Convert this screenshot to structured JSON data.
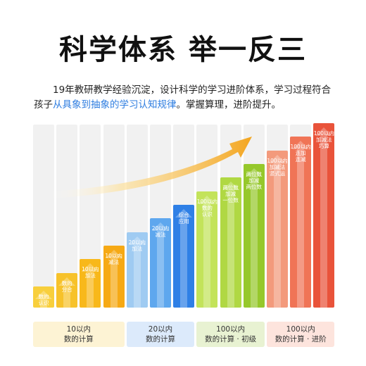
{
  "title": "科学体系 举一反三",
  "description": {
    "part1": "19年教研教学经验沉淀，设计科学的学习进阶体系，学习过程符合孩子",
    "highlight": "从具象到抽象的学习认知规律",
    "part2": "。掌握算理，进阶提升。"
  },
  "colors": {
    "highlight": "#2e7de0",
    "column_bg": "#f1f1f1",
    "arrow": "#f3a51f"
  },
  "chart_data": {
    "type": "bar",
    "categories": [
      "数的认识",
      "数的分合",
      "10以内加法",
      "10以内减法",
      "20以内加法",
      "20以内减法",
      "综合应用",
      "100以内数的认识",
      "两位数加减一位数",
      "两位数加减两位数",
      "100以内加减法竖式运",
      "100以内连加连减",
      "100以内加减法巧算"
    ],
    "bar_labels": [
      "数的\n认识",
      "数的\n分合",
      "10以内\n加法",
      "10以内\n减法",
      "20以内\n加法",
      "20以内\n减法",
      "综合\n应用",
      "100以内\n数的\n认识",
      "两位数\n加减\n一位数",
      "两位数\n加减\n两位数",
      "100以内\n加减法\n竖式运",
      "100以内\n连加\n连减",
      "100以内\n加减法\n巧算"
    ],
    "values": [
      1,
      2,
      3,
      4,
      5,
      6,
      7,
      8,
      9,
      10,
      11,
      12,
      13
    ],
    "colors": [
      "#f8cf3c",
      "#f7c22a",
      "#f8b81a",
      "#f6a915",
      "#9fcbf2",
      "#5ea7ee",
      "#2f80e6",
      "#c3e35a",
      "#b0d843",
      "#96c82b",
      "#f39a7c",
      "#f07456",
      "#e9533a"
    ],
    "groups": [
      {
        "line1": "10以内",
        "line2": "数的计算",
        "color": "#fdf3d4",
        "span": [
          0,
          3
        ]
      },
      {
        "line1": "20以内",
        "line2": "数的计算",
        "color": "#dceafb",
        "span": [
          4,
          6
        ]
      },
      {
        "line1": "100以内",
        "line2": "数的计算 · 初级",
        "color": "#e8f2d2",
        "span": [
          7,
          9
        ]
      },
      {
        "line1": "100以内",
        "line2": "数的计算 · 进阶",
        "color": "#fde4dd",
        "span": [
          10,
          12
        ]
      }
    ]
  }
}
